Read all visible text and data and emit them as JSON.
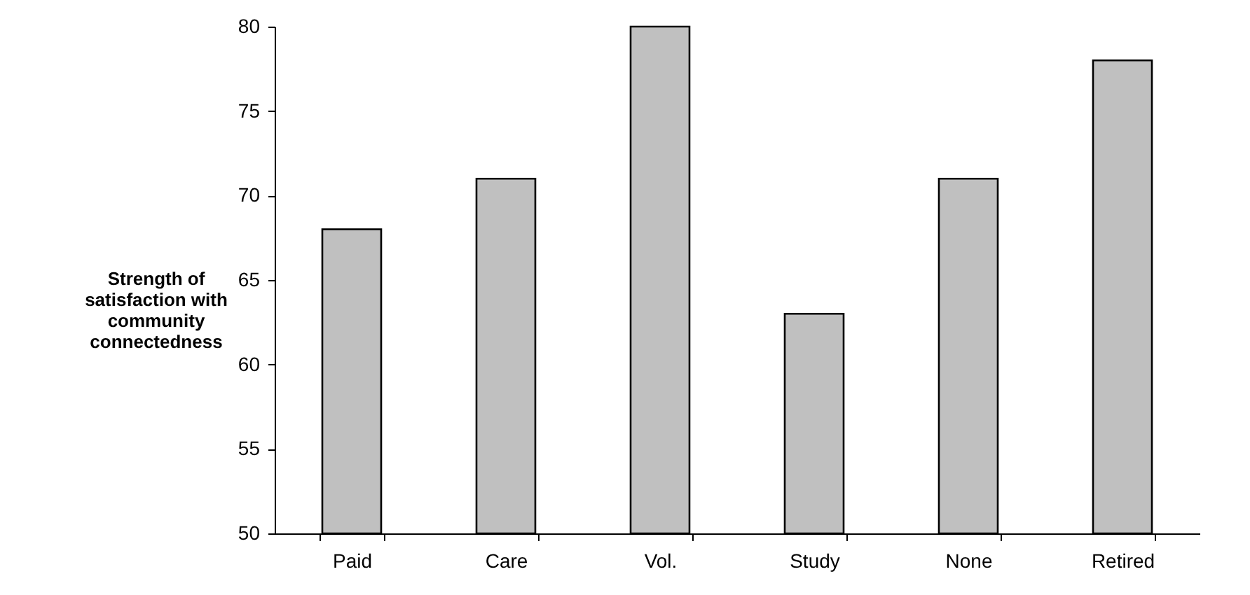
{
  "chart_data": {
    "type": "bar",
    "ylabel": "Strength of satisfaction with community connectedness",
    "categories": [
      "Paid",
      "Care",
      "Vol.",
      "Study",
      "None",
      "Retired"
    ],
    "values": [
      68,
      71,
      80,
      63,
      71,
      78
    ],
    "color": "#c0c0c0",
    "ylim": [
      50,
      80
    ],
    "yticks": [
      50,
      55,
      60,
      65,
      70,
      75,
      80
    ],
    "grid": false
  }
}
